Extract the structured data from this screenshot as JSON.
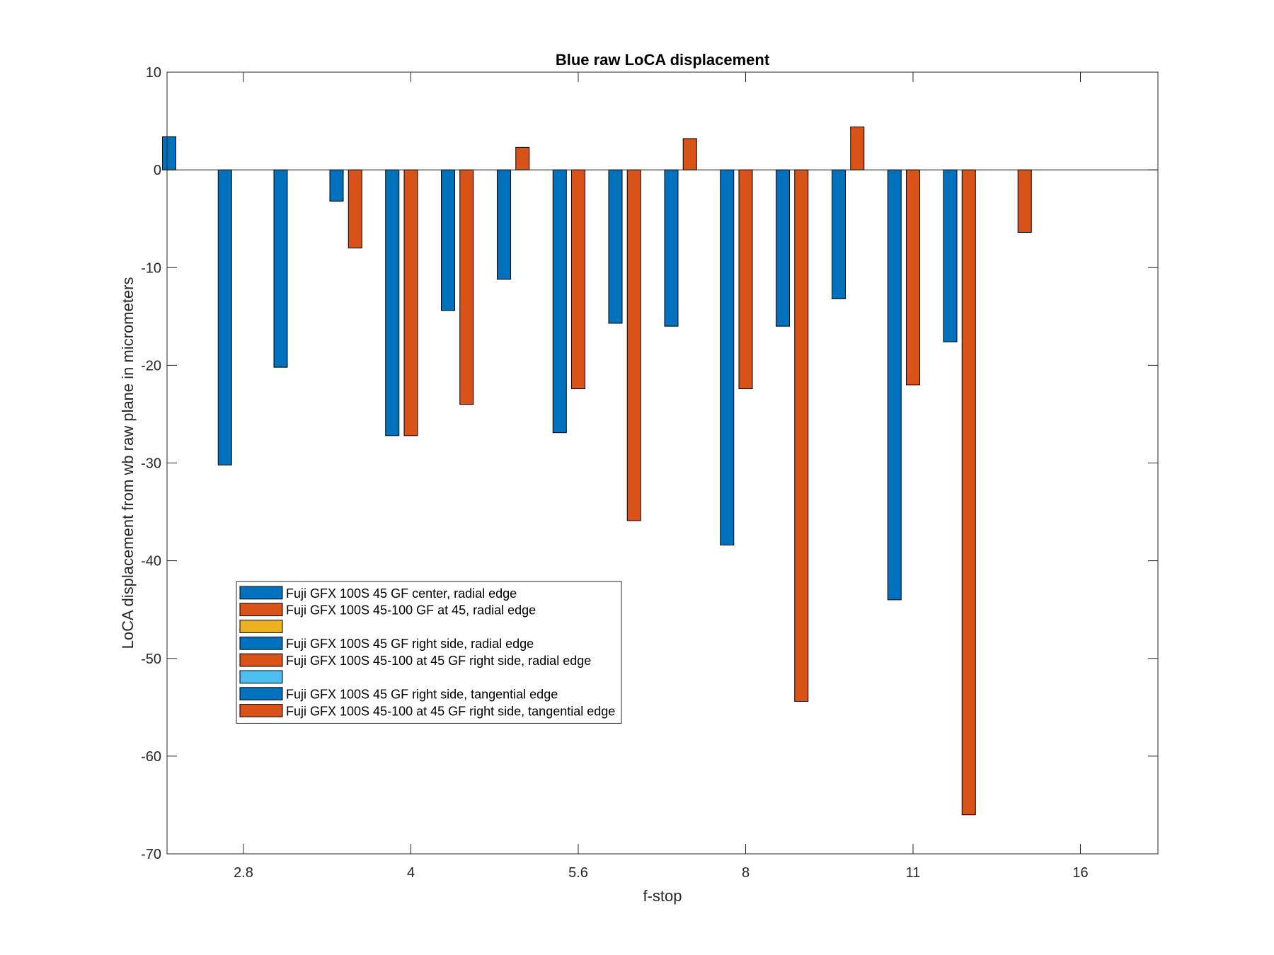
{
  "chart_data": {
    "type": "bar",
    "title": "Blue raw  LoCA displacement",
    "xlabel": "f-stop",
    "ylabel": "LoCA displacement from wb raw plane in micrometers",
    "ylim": [
      -70,
      10
    ],
    "yticks": [
      "10",
      "0",
      "-10",
      "-20",
      "-30",
      "-40",
      "-50",
      "-60",
      "-70"
    ],
    "categories": [
      "2.8",
      "4",
      "5.6",
      "8",
      "11",
      "16"
    ],
    "grid": false,
    "legend_position": "lower-left",
    "groups": [
      [
        3.4,
        0,
        0,
        -30.2,
        0,
        0,
        -20.2,
        0,
        0
      ],
      [
        -3.2,
        -8.0,
        0,
        -27.2,
        -27.2,
        0,
        -14.4,
        -24.0,
        0
      ],
      [
        -11.2,
        2.3,
        0,
        -26.9,
        -22.4,
        0,
        -15.7,
        -35.9,
        0
      ],
      [
        -16.0,
        3.2,
        0,
        -38.4,
        -22.4,
        0,
        -16.0,
        -54.4,
        0
      ],
      [
        -13.2,
        4.4,
        0,
        -44.0,
        -22.0,
        0,
        -17.6,
        -66.0,
        0
      ],
      [
        0,
        -6.4,
        0,
        0,
        0,
        0,
        0,
        0,
        0
      ]
    ],
    "series": [
      {
        "name": "Fuji GFX 100S 45 GF center, radial edge",
        "color": "#0072BD"
      },
      {
        "name": "Fuji GFX 100S 45-100 GF at 45, radial edge",
        "color": "#D95319"
      },
      {
        "name": "",
        "color": "#EDB120"
      },
      {
        "name": "Fuji GFX 100S 45 GF right side, radial edge",
        "color": "#0072BD"
      },
      {
        "name": "Fuji GFX 100S 45-100 at 45 GF right side, radial edge",
        "color": "#D95319"
      },
      {
        "name": "",
        "color": "#4DBEEE"
      },
      {
        "name": "Fuji GFX 100S 45 GF right side, tangential edge",
        "color": "#0072BD"
      },
      {
        "name": "Fuji GFX 100S 45-100 at 45 GF right side, tangential edge",
        "color": "#D95319"
      },
      {
        "name": "",
        "color": "#4DBEEE"
      }
    ],
    "legend_entries": 8
  }
}
